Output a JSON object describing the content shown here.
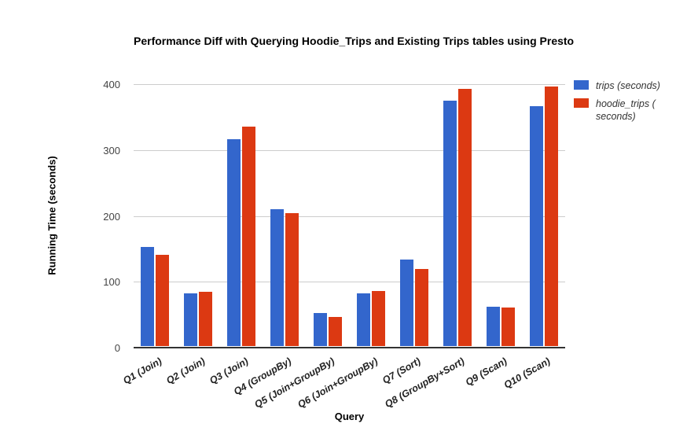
{
  "chart": {
    "title": "Performance Diff with Querying Hoodie_Trips and Existing Trips tables using Presto",
    "x_axis_title": "Query",
    "y_axis_title": "Running Time (seconds)"
  },
  "legend": {
    "position": "right",
    "items": [
      {
        "name": "trips",
        "color": "#3366CC",
        "lines": [
          "trips (seconds)"
        ]
      },
      {
        "name": "hoodie_trips",
        "color": "#DC3912",
        "lines": [
          "hoodie_trips (",
          "seconds)"
        ]
      }
    ]
  },
  "colors": {
    "series_blue": "#3366CC",
    "series_red": "#DC3912",
    "gridline": "#cccccc",
    "baseline": "#333333",
    "tick_text": "#444444",
    "background": "#ffffff"
  },
  "chart_data": {
    "type": "bar",
    "title": "Performance Diff with Querying Hoodie_Trips and Existing Trips tables using Presto",
    "xlabel": "Query",
    "ylabel": "Running Time (seconds)",
    "categories": [
      "Q1 (Join)",
      "Q2 (Join)",
      "Q3 (Join)",
      "Q4 (GroupBy)",
      "Q5 (Join+GroupBy)",
      "Q6 (Join+GroupBy)",
      "Q7 (Sort)",
      "Q8 (GroupBy+Sort)",
      "Q9 (Scan)",
      "Q10 (Scan)"
    ],
    "series": [
      {
        "name": "trips (seconds)",
        "color": "#3366CC",
        "values": [
          150,
          80,
          314,
          208,
          50,
          80,
          131,
          372,
          60,
          364
        ]
      },
      {
        "name": "hoodie_trips (seconds)",
        "color": "#DC3912",
        "values": [
          138,
          83,
          333,
          202,
          44,
          84,
          117,
          391,
          59,
          394
        ]
      }
    ],
    "ylim": [
      0,
      400
    ],
    "yticks": [
      0,
      100,
      200,
      300,
      400
    ],
    "grid": true,
    "legend_position": "right"
  }
}
